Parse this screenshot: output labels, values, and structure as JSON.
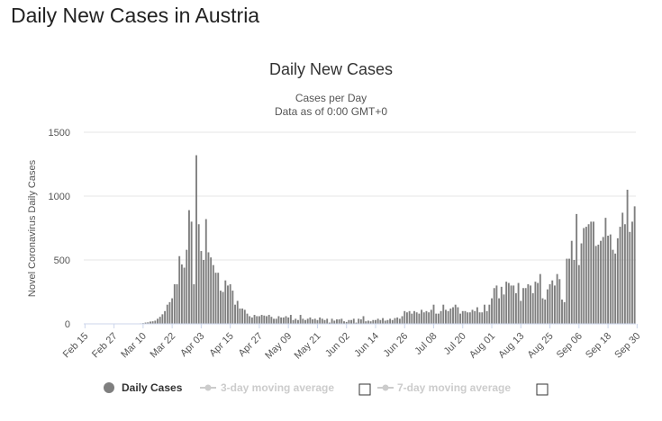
{
  "page": {
    "title": "Daily New Cases in Austria"
  },
  "colors": {
    "bar": "#7f7f7f",
    "grid": "#e6e6e6",
    "axis": "#ccd6eb",
    "legend_inactive": "#cccccc",
    "legend_active": "#333333"
  },
  "legend": {
    "items": [
      {
        "label": "Daily Cases",
        "active": true,
        "icon": "circle-icon"
      },
      {
        "label": "3-day moving average",
        "active": false,
        "icon": "line-marker-icon"
      },
      {
        "label": "7-day moving average",
        "active": false,
        "icon": "line-marker-icon"
      }
    ]
  },
  "chart_data": {
    "type": "bar",
    "title": "Daily New Cases",
    "subtitle": [
      "Cases per Day",
      "Data as of 0:00 GMT+0"
    ],
    "xlabel": "",
    "ylabel": "Novel Coronavirus Daily Cases",
    "ylim": [
      0,
      1500
    ],
    "yticks": [
      0,
      500,
      1000,
      1500
    ],
    "grid": true,
    "legend_position": "bottom",
    "x_start": "Feb 15",
    "xticks": [
      "Feb 15",
      "Feb 27",
      "Mar 10",
      "Mar 22",
      "Apr 03",
      "Apr 15",
      "Apr 27",
      "May 09",
      "May 21",
      "Jun 02",
      "Jun 14",
      "Jun 26",
      "Jul 08",
      "Jul 20",
      "Aug 01",
      "Aug 13",
      "Aug 25",
      "Sep 06",
      "Sep 18",
      "Sep 30"
    ],
    "series": [
      {
        "name": "Daily Cases",
        "values": [
          0,
          0,
          0,
          0,
          0,
          0,
          0,
          0,
          0,
          0,
          2,
          0,
          0,
          0,
          0,
          0,
          0,
          0,
          0,
          0,
          0,
          2,
          3,
          4,
          6,
          10,
          12,
          18,
          20,
          25,
          40,
          55,
          75,
          100,
          150,
          170,
          200,
          310,
          310,
          530,
          465,
          440,
          580,
          890,
          800,
          310,
          1320,
          780,
          570,
          500,
          820,
          560,
          520,
          460,
          400,
          400,
          260,
          250,
          340,
          300,
          310,
          260,
          150,
          180,
          120,
          120,
          110,
          80,
          60,
          50,
          70,
          60,
          60,
          70,
          65,
          60,
          70,
          55,
          40,
          40,
          60,
          50,
          50,
          60,
          50,
          70,
          30,
          40,
          30,
          70,
          40,
          30,
          40,
          50,
          35,
          40,
          30,
          50,
          40,
          30,
          40,
          10,
          40,
          25,
          35,
          35,
          40,
          20,
          15,
          30,
          30,
          40,
          10,
          40,
          35,
          60,
          20,
          25,
          20,
          30,
          30,
          40,
          30,
          45,
          25,
          30,
          40,
          30,
          45,
          50,
          40,
          60,
          100,
          90,
          100,
          80,
          100,
          90,
          80,
          110,
          90,
          100,
          90,
          110,
          150,
          80,
          80,
          100,
          150,
          110,
          100,
          120,
          130,
          150,
          130,
          80,
          100,
          100,
          90,
          90,
          110,
          100,
          130,
          90,
          90,
          150,
          100,
          150,
          200,
          280,
          300,
          200,
          290,
          230,
          330,
          320,
          300,
          300,
          240,
          320,
          180,
          280,
          280,
          310,
          300,
          240,
          330,
          320,
          390,
          200,
          190,
          270,
          310,
          340,
          300,
          390,
          350,
          190,
          170,
          510,
          510,
          650,
          500,
          860,
          460,
          630,
          750,
          760,
          780,
          800,
          800,
          610,
          620,
          650,
          680,
          830,
          690,
          700,
          580,
          550,
          670,
          760,
          870,
          780,
          1050,
          720,
          800,
          920
        ]
      }
    ]
  }
}
